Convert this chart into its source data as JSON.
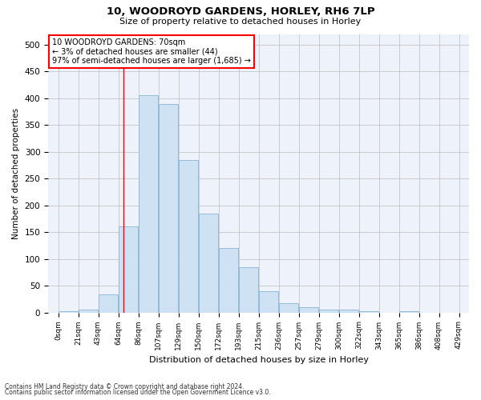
{
  "title": "10, WOODROYD GARDENS, HORLEY, RH6 7LP",
  "subtitle": "Size of property relative to detached houses in Horley",
  "xlabel": "Distribution of detached houses by size in Horley",
  "ylabel": "Number of detached properties",
  "bar_color": "#cfe2f3",
  "bar_edgecolor": "#8ab4d4",
  "grid_color": "#bbbbbb",
  "background_color": "#eef3fb",
  "tick_labels": [
    "0sqm",
    "21sqm",
    "43sqm",
    "64sqm",
    "86sqm",
    "107sqm",
    "129sqm",
    "150sqm",
    "172sqm",
    "193sqm",
    "215sqm",
    "236sqm",
    "257sqm",
    "279sqm",
    "300sqm",
    "322sqm",
    "343sqm",
    "365sqm",
    "386sqm",
    "408sqm",
    "429sqm"
  ],
  "bar_heights": [
    3,
    5,
    33,
    160,
    405,
    390,
    285,
    185,
    120,
    85,
    40,
    18,
    10,
    5,
    5,
    2,
    0,
    3,
    0,
    0
  ],
  "ylim": [
    0,
    520
  ],
  "yticks": [
    0,
    50,
    100,
    150,
    200,
    250,
    300,
    350,
    400,
    450,
    500
  ],
  "property_line_x": 70,
  "annotation_text": "10 WOODROYD GARDENS: 70sqm\n← 3% of detached houses are smaller (44)\n97% of semi-detached houses are larger (1,685) →",
  "footer_line1": "Contains HM Land Registry data © Crown copyright and database right 2024.",
  "footer_line2": "Contains public sector information licensed under the Open Government Licence v3.0.",
  "bin_width": 21.4
}
